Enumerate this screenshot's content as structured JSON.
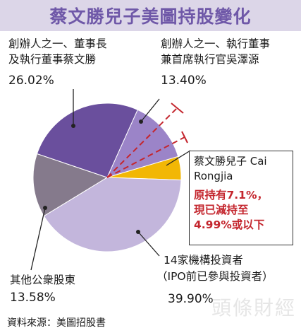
{
  "chart_data": {
    "type": "pie",
    "title": "蔡文勝兒子美圖持股變化",
    "slices": [
      {
        "label": "創辦人之一、執行董事兼首席執行官吳澤源",
        "value": 13.4,
        "percent_label": "13.40%",
        "color": "#9b84c8"
      },
      {
        "label": "蔡文勝兒子 Cai Rongjia",
        "value": 4.99,
        "percent_label": "",
        "color": "#f2b705"
      },
      {
        "label": "14家機構投資者（IPO前已參與投資者）",
        "value": 39.9,
        "percent_label": "39.90%",
        "color": "#c3b6dc"
      },
      {
        "label": "其他公衆股東",
        "value": 13.58,
        "percent_label": "13.58%",
        "color": "#857a8c"
      },
      {
        "label": "創辦人之一、董事長及執行董事蔡文勝",
        "value": 26.02,
        "percent_label": "26.02%",
        "color": "#6a4f9d"
      }
    ]
  },
  "labels": {
    "cai_wensheng": [
      "創辦人之一、董事長",
      "及執行董事蔡文勝"
    ],
    "cai_wensheng_pct": "26.02%",
    "wu_zeyuan": [
      "創辦人之一、執行董事",
      "兼首席執行官吳澤源"
    ],
    "wu_zeyuan_pct": "13.40%",
    "institutions": [
      "14家機構投資者",
      "（IPO前已參與投資者）"
    ],
    "institutions_pct": "39.90%",
    "public": "其他公衆股東",
    "public_pct": "13.58%"
  },
  "callout": {
    "name_lines": [
      "蔡文勝兒子 Cai",
      "Rongjia"
    ],
    "note_lines": [
      "原持有7.1%，",
      "現已減持至",
      "4.99%或以下"
    ]
  },
  "source": "資料來源：美圖招股書",
  "watermark": "頭條財經",
  "colors": {
    "title": "#6f58a8",
    "title_bg": "#dcd6e8",
    "callout_text": "#c4262e",
    "dashed_line": "#c4262e"
  }
}
